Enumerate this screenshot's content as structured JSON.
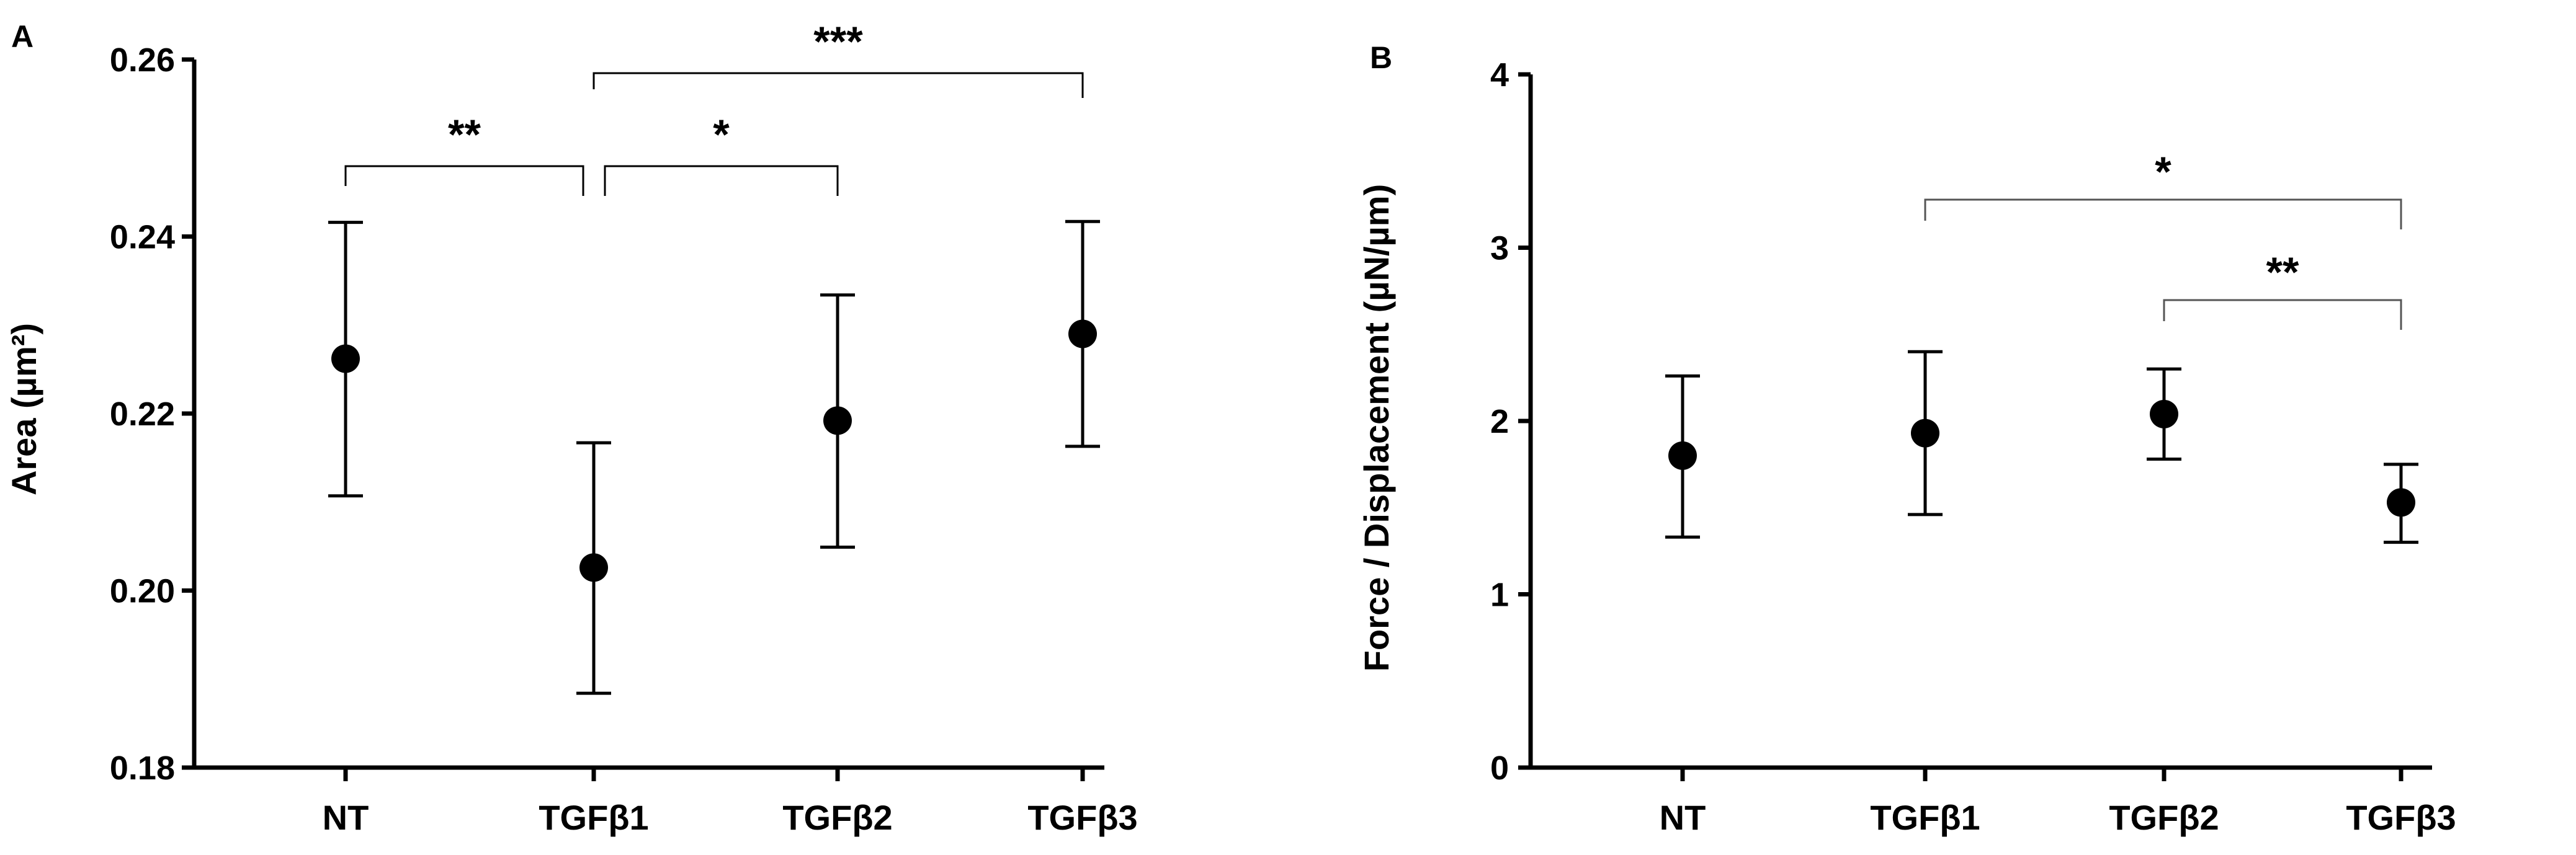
{
  "chart_data": [
    {
      "panel": "A",
      "type": "scatter",
      "categories": [
        "NT",
        "TGFβ1",
        "TGFβ2",
        "TGFβ3"
      ],
      "values": [
        0.2262,
        0.2026,
        0.2192,
        0.229
      ],
      "error_low": [
        0.2107,
        0.1884,
        0.2049,
        0.2163
      ],
      "error_high": [
        0.2416,
        0.2167,
        0.2334,
        0.2417
      ],
      "ylabel": "Area (µm²)",
      "ylim": [
        0.18,
        0.26
      ],
      "yticks": [
        "0.18",
        "0.20",
        "0.22",
        "0.24",
        "0.26"
      ],
      "significance": [
        {
          "from": 0,
          "to": 1,
          "label": "**"
        },
        {
          "from": 1,
          "to": 2,
          "label": "*"
        },
        {
          "from": 1,
          "to": 3,
          "label": "***"
        }
      ]
    },
    {
      "panel": "B",
      "type": "scatter",
      "categories": [
        "NT",
        "TGFβ1",
        "TGFβ2",
        "TGFβ3"
      ],
      "values": [
        1.8,
        1.93,
        2.04,
        1.53
      ],
      "error_low": [
        1.33,
        1.46,
        1.78,
        1.3
      ],
      "error_high": [
        2.26,
        2.4,
        2.3,
        1.75
      ],
      "ylabel": "Force / Displacement (µN/µm)",
      "ylim": [
        0,
        4
      ],
      "yticks": [
        "0",
        "1",
        "2",
        "3",
        "4"
      ],
      "significance": [
        {
          "from": 1,
          "to": 3,
          "label": "*"
        },
        {
          "from": 2,
          "to": 3,
          "label": "**"
        }
      ]
    }
  ]
}
